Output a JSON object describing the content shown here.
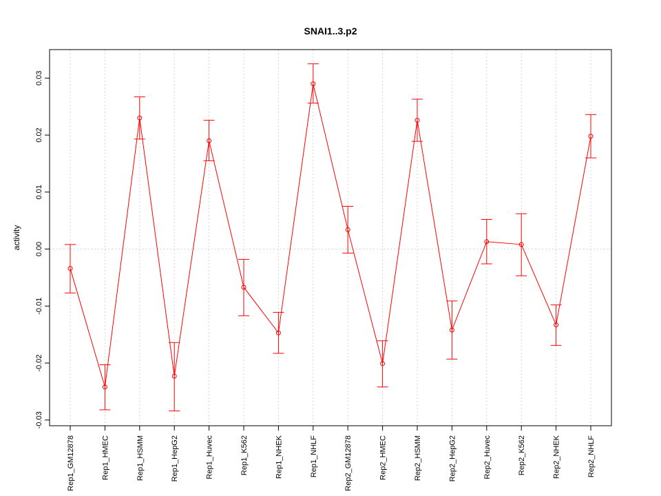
{
  "chart_data": {
    "type": "line",
    "title": "SNAI1..3.p2",
    "xlabel": "",
    "ylabel": "activity",
    "ylim": [
      -0.031,
      0.035
    ],
    "yticks": [
      -0.03,
      -0.02,
      -0.01,
      0.0,
      0.01,
      0.02,
      0.03
    ],
    "ytick_labels": [
      "-0.03",
      "-0.02",
      "-0.01",
      "0.00",
      "0.01",
      "0.02",
      "0.03"
    ],
    "grid": true,
    "categories": [
      "Rep1_GM12878",
      "Rep1_HMEC",
      "Rep1_HSMM",
      "Rep1_HepG2",
      "Rep1_Huvec",
      "Rep1_K562",
      "Rep1_NHEK",
      "Rep1_NHLF",
      "Rep2_GM12878",
      "Rep2_HMEC",
      "Rep2_HSMM",
      "Rep2_HepG2",
      "Rep2_Huvec",
      "Rep2_K562",
      "Rep2_NHEK",
      "Rep2_NHLF"
    ],
    "series": [
      {
        "color": "#ff0000",
        "values": [
          -0.0034,
          -0.0242,
          0.023,
          -0.0223,
          0.019,
          -0.0067,
          -0.0147,
          0.029,
          0.0034,
          -0.0201,
          0.0226,
          -0.0142,
          0.0013,
          0.0008,
          -0.0133,
          0.0198
        ],
        "error_low": [
          -0.0077,
          -0.0282,
          0.0193,
          -0.0284,
          0.0155,
          -0.0117,
          -0.0183,
          0.0256,
          -0.0007,
          -0.0242,
          0.0189,
          -0.0193,
          -0.0026,
          -0.0047,
          -0.0169,
          0.016
        ],
        "error_high": [
          0.0008,
          -0.0203,
          0.0267,
          -0.0164,
          0.0226,
          -0.0018,
          -0.0111,
          0.0325,
          0.0075,
          -0.0161,
          0.0263,
          -0.0091,
          0.0052,
          0.0062,
          -0.0098,
          0.0236
        ]
      }
    ]
  }
}
